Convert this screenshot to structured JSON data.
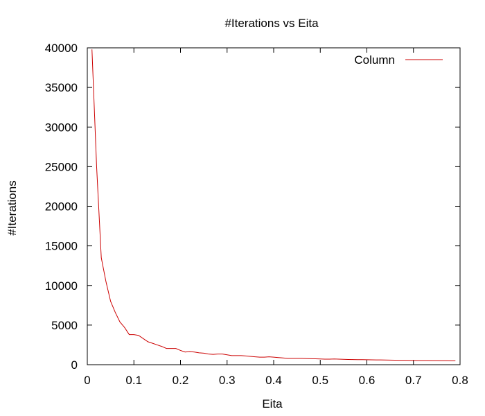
{
  "chart_data": {
    "type": "line",
    "title": "#Iterations vs Eita",
    "xlabel": "Eita",
    "ylabel": "#Iterations",
    "xlim": [
      0,
      0.8
    ],
    "ylim": [
      0,
      40000
    ],
    "xticks": [
      "0",
      "0.1",
      "0.2",
      "0.3",
      "0.4",
      "0.5",
      "0.6",
      "0.7",
      "0.8"
    ],
    "yticks": [
      "0",
      "5000",
      "10000",
      "15000",
      "20000",
      "25000",
      "30000",
      "35000",
      "40000"
    ],
    "grid": false,
    "legend_position": "top-right",
    "series": [
      {
        "name": "Column",
        "color": "#cc0000",
        "x": [
          0.01,
          0.02,
          0.03,
          0.04,
          0.05,
          0.06,
          0.07,
          0.08,
          0.09,
          0.1,
          0.11,
          0.12,
          0.13,
          0.14,
          0.15,
          0.16,
          0.17,
          0.18,
          0.19,
          0.2,
          0.21,
          0.22,
          0.23,
          0.24,
          0.25,
          0.26,
          0.27,
          0.28,
          0.29,
          0.3,
          0.31,
          0.32,
          0.33,
          0.34,
          0.35,
          0.36,
          0.37,
          0.38,
          0.39,
          0.4,
          0.41,
          0.42,
          0.43,
          0.44,
          0.45,
          0.46,
          0.47,
          0.48,
          0.49,
          0.5,
          0.51,
          0.52,
          0.53,
          0.54,
          0.55,
          0.56,
          0.57,
          0.58,
          0.59,
          0.6,
          0.61,
          0.62,
          0.63,
          0.64,
          0.65,
          0.66,
          0.67,
          0.68,
          0.69,
          0.7,
          0.71,
          0.72,
          0.73,
          0.74,
          0.75,
          0.76,
          0.77,
          0.78,
          0.79
        ],
        "y": [
          39800,
          25000,
          13500,
          10500,
          8000,
          6600,
          5400,
          4700,
          3800,
          3800,
          3700,
          3300,
          2900,
          2700,
          2500,
          2300,
          2050,
          2050,
          2050,
          1800,
          1600,
          1650,
          1600,
          1500,
          1450,
          1350,
          1300,
          1350,
          1350,
          1250,
          1150,
          1150,
          1150,
          1100,
          1050,
          1000,
          950,
          950,
          1000,
          950,
          900,
          850,
          800,
          800,
          800,
          800,
          780,
          760,
          740,
          720,
          700,
          700,
          720,
          700,
          680,
          660,
          650,
          640,
          630,
          620,
          610,
          600,
          600,
          590,
          580,
          570,
          560,
          560,
          550,
          540,
          530,
          520,
          520,
          510,
          510,
          500,
          500,
          490,
          490
        ]
      }
    ]
  }
}
